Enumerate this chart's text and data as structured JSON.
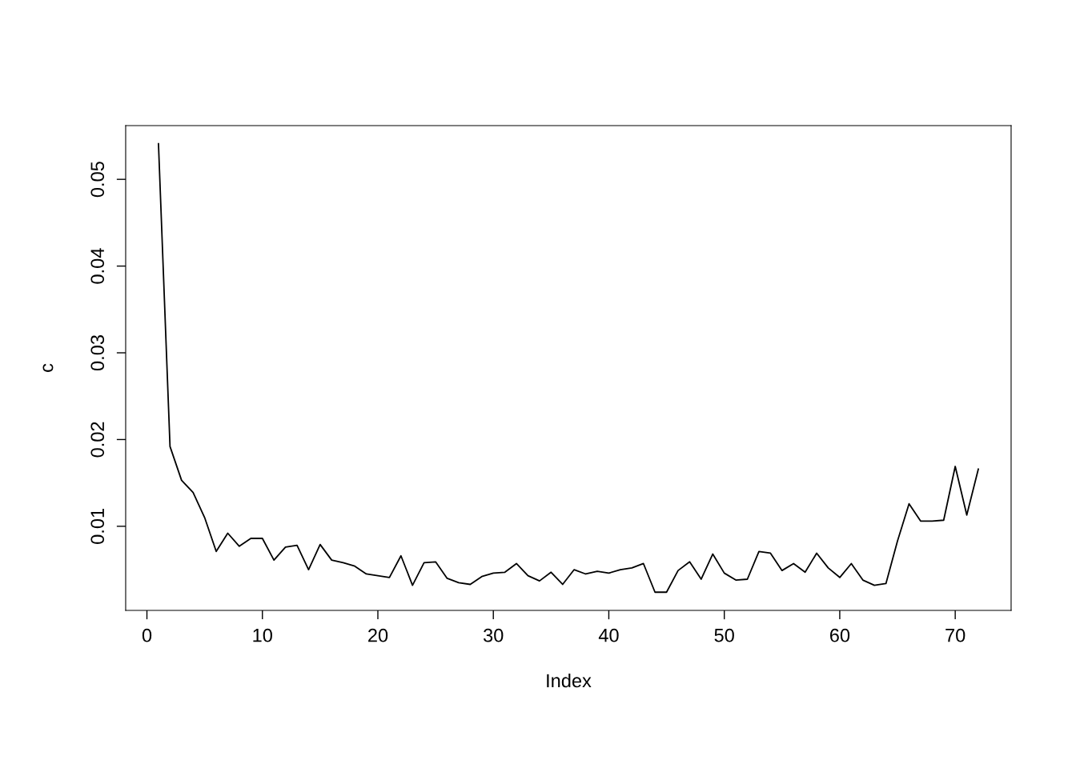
{
  "chart_data": {
    "type": "line",
    "xlabel": "Index",
    "ylabel": "c",
    "x": [
      1,
      2,
      3,
      4,
      5,
      6,
      7,
      8,
      9,
      10,
      11,
      12,
      13,
      14,
      15,
      16,
      17,
      18,
      19,
      20,
      21,
      22,
      23,
      24,
      25,
      26,
      27,
      28,
      29,
      30,
      31,
      32,
      33,
      34,
      35,
      36,
      37,
      38,
      39,
      40,
      41,
      42,
      43,
      44,
      45,
      46,
      47,
      48,
      49,
      50,
      51,
      52,
      53,
      54,
      55,
      56,
      57,
      58,
      59,
      60,
      61,
      62,
      63,
      64,
      65,
      66,
      67,
      68,
      69,
      70,
      71,
      72
    ],
    "series": [
      {
        "color": "#000000",
        "values": [
          0.0541,
          0.0192,
          0.0153,
          0.0139,
          0.011,
          0.0071,
          0.0092,
          0.0077,
          0.0086,
          0.0086,
          0.0061,
          0.0076,
          0.0078,
          0.005,
          0.0079,
          0.0061,
          0.0058,
          0.0054,
          0.0045,
          0.0043,
          0.0041,
          0.0066,
          0.0032,
          0.0058,
          0.0059,
          0.004,
          0.0035,
          0.0033,
          0.0042,
          0.0046,
          0.0047,
          0.0057,
          0.0043,
          0.0037,
          0.0047,
          0.0033,
          0.005,
          0.0045,
          0.0048,
          0.0046,
          0.005,
          0.0052,
          0.0057,
          0.0024,
          0.0024,
          0.0049,
          0.0059,
          0.0039,
          0.0068,
          0.0046,
          0.0038,
          0.0039,
          0.0071,
          0.0069,
          0.0049,
          0.0057,
          0.0047,
          0.0069,
          0.0052,
          0.0041,
          0.0057,
          0.0038,
          0.0032,
          0.0034,
          0.0083,
          0.0126,
          0.0106,
          0.0106,
          0.0107,
          0.0169,
          0.0113,
          0.0166
        ]
      }
    ],
    "xlim": [
      -1.84,
      74.84
    ],
    "xticks": [
      0,
      10,
      20,
      30,
      40,
      50,
      60,
      70
    ],
    "ylim": [
      0.0003,
      0.0562
    ],
    "yticks": [
      0.01,
      0.02,
      0.03,
      0.04,
      0.05
    ],
    "grid": false,
    "legend": false,
    "marker": "none",
    "line_style": "solid"
  }
}
